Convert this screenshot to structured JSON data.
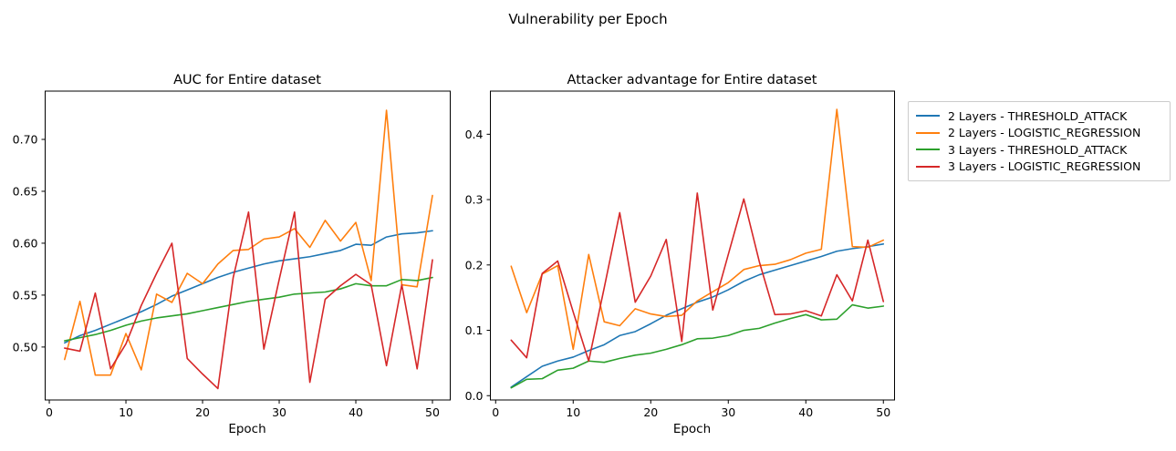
{
  "suptitle": "Vulnerability per Epoch",
  "palette": {
    "blue": "#1f77b4",
    "orange": "#ff7f0e",
    "green": "#2ca02c",
    "red": "#d62728",
    "spine": "#000000",
    "legend_border": "#cccccc"
  },
  "chart_data": [
    {
      "type": "line",
      "title": "AUC for Entire dataset",
      "xlabel": "Epoch",
      "grid": false,
      "x": [
        2,
        4,
        6,
        8,
        10,
        12,
        14,
        16,
        18,
        20,
        22,
        24,
        26,
        28,
        30,
        32,
        34,
        36,
        38,
        40,
        42,
        44,
        46,
        48,
        50
      ],
      "xlim": [
        -0.54,
        52.32
      ],
      "ylim": [
        0.449,
        0.7465
      ],
      "xticks": {
        "values": [
          0,
          10,
          20,
          30,
          40,
          50
        ],
        "labels": [
          "0",
          "10",
          "20",
          "30",
          "40",
          "50"
        ]
      },
      "yticks": {
        "values": [
          0.5,
          0.55,
          0.6,
          0.65,
          0.7
        ],
        "labels": [
          "0.50",
          "0.55",
          "0.60",
          "0.65",
          "0.70"
        ]
      },
      "series": [
        {
          "name": "2 Layers - THRESHOLD_ATTACK",
          "color": "#1f77b4",
          "values": [
            0.504,
            0.511,
            0.516,
            0.522,
            0.528,
            0.534,
            0.541,
            0.549,
            0.555,
            0.561,
            0.567,
            0.572,
            0.576,
            0.58,
            0.583,
            0.585,
            0.587,
            0.59,
            0.593,
            0.599,
            0.598,
            0.606,
            0.609,
            0.61,
            0.612
          ]
        },
        {
          "name": "2 Layers - LOGISTIC_REGRESSION",
          "color": "#ff7f0e",
          "values": [
            0.488,
            0.544,
            0.473,
            0.473,
            0.513,
            0.478,
            0.551,
            0.543,
            0.571,
            0.561,
            0.58,
            0.593,
            0.594,
            0.604,
            0.606,
            0.614,
            0.596,
            0.622,
            0.602,
            0.62,
            0.564,
            0.728,
            0.56,
            0.558,
            0.646
          ]
        },
        {
          "name": "3 Layers - THRESHOLD_ATTACK",
          "color": "#2ca02c",
          "values": [
            0.506,
            0.509,
            0.512,
            0.516,
            0.521,
            0.525,
            0.528,
            0.53,
            0.532,
            0.535,
            0.538,
            0.541,
            0.544,
            0.546,
            0.548,
            0.551,
            0.552,
            0.553,
            0.556,
            0.561,
            0.559,
            0.559,
            0.565,
            0.564,
            0.567
          ]
        },
        {
          "name": "3 Layers - LOGISTIC_REGRESSION",
          "color": "#d62728",
          "values": [
            0.499,
            0.496,
            0.552,
            0.479,
            0.503,
            0.54,
            0.571,
            0.6,
            0.489,
            0.474,
            0.46,
            0.567,
            0.63,
            0.498,
            0.565,
            0.63,
            0.466,
            0.546,
            0.559,
            0.57,
            0.56,
            0.482,
            0.56,
            0.479,
            0.584
          ]
        }
      ]
    },
    {
      "type": "line",
      "title": "Attacker advantage for Entire dataset",
      "xlabel": "Epoch",
      "grid": false,
      "x": [
        2,
        4,
        6,
        8,
        10,
        12,
        14,
        16,
        18,
        20,
        22,
        24,
        26,
        28,
        30,
        32,
        34,
        36,
        38,
        40,
        42,
        44,
        46,
        48,
        50
      ],
      "xlim": [
        -0.68,
        51.44
      ],
      "ylim": [
        -0.0066,
        0.466
      ],
      "xticks": {
        "values": [
          0,
          10,
          20,
          30,
          40,
          50
        ],
        "labels": [
          "0",
          "10",
          "20",
          "30",
          "40",
          "50"
        ]
      },
      "yticks": {
        "values": [
          0.0,
          0.1,
          0.2,
          0.3,
          0.4
        ],
        "labels": [
          "0.0",
          "0.1",
          "0.2",
          "0.3",
          "0.4"
        ]
      },
      "series": [
        {
          "name": "2 Layers - THRESHOLD_ATTACK",
          "color": "#1f77b4",
          "values": [
            0.013,
            0.029,
            0.045,
            0.053,
            0.059,
            0.069,
            0.078,
            0.092,
            0.098,
            0.11,
            0.123,
            0.133,
            0.143,
            0.151,
            0.162,
            0.175,
            0.185,
            0.192,
            0.199,
            0.206,
            0.213,
            0.221,
            0.225,
            0.228,
            0.232
          ]
        },
        {
          "name": "2 Layers - LOGISTIC_REGRESSION",
          "color": "#ff7f0e",
          "values": [
            0.198,
            0.127,
            0.186,
            0.199,
            0.071,
            0.216,
            0.113,
            0.107,
            0.133,
            0.125,
            0.121,
            0.123,
            0.145,
            0.159,
            0.173,
            0.193,
            0.199,
            0.201,
            0.208,
            0.218,
            0.224,
            0.438,
            0.228,
            0.227,
            0.238
          ]
        },
        {
          "name": "3 Layers - THRESHOLD_ATTACK",
          "color": "#2ca02c",
          "values": [
            0.012,
            0.025,
            0.026,
            0.039,
            0.042,
            0.053,
            0.051,
            0.057,
            0.062,
            0.065,
            0.071,
            0.078,
            0.087,
            0.088,
            0.092,
            0.1,
            0.103,
            0.111,
            0.118,
            0.124,
            0.116,
            0.117,
            0.139,
            0.134,
            0.137
          ]
        },
        {
          "name": "3 Layers - LOGISTIC_REGRESSION",
          "color": "#d62728",
          "values": [
            0.085,
            0.058,
            0.187,
            0.206,
            0.128,
            0.053,
            0.165,
            0.28,
            0.143,
            0.183,
            0.239,
            0.083,
            0.31,
            0.131,
            0.216,
            0.301,
            0.205,
            0.124,
            0.125,
            0.13,
            0.122,
            0.185,
            0.145,
            0.238,
            0.144
          ]
        }
      ]
    }
  ],
  "legend": {
    "position": "outside-right",
    "entries": [
      "2 Layers - THRESHOLD_ATTACK",
      "2 Layers - LOGISTIC_REGRESSION",
      "3 Layers - THRESHOLD_ATTACK",
      "3 Layers - LOGISTIC_REGRESSION"
    ]
  }
}
